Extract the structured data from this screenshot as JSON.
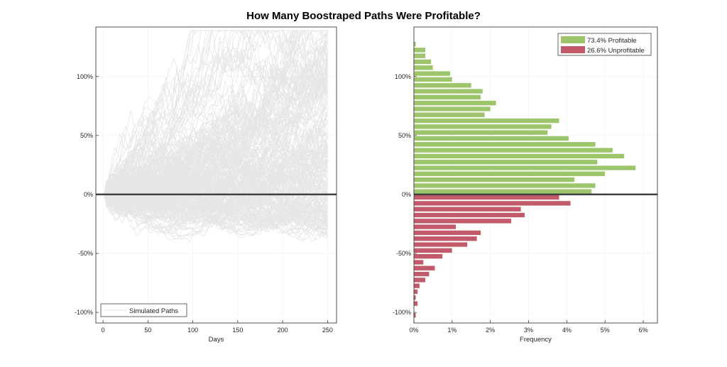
{
  "title": "How Many Boostraped Paths Were Profitable?",
  "chart_data": [
    {
      "type": "line",
      "title": "",
      "xlabel": "Days",
      "ylabel": "",
      "xlim": [
        -8,
        260
      ],
      "ylim": [
        -109,
        142
      ],
      "xticks": [
        0,
        50,
        100,
        150,
        200,
        250
      ],
      "xtick_labels": [
        "0",
        "50",
        "100",
        "150",
        "200",
        "250"
      ],
      "yticks": [
        -100,
        -50,
        0,
        50,
        100
      ],
      "ytick_labels": [
        "-100%",
        "-50%",
        "0%",
        "50%",
        "100%"
      ],
      "grid": true,
      "legend": {
        "placement": "bottom-left",
        "entries": [
          "Simulated Paths"
        ]
      },
      "series": [
        {
          "name": "Simulated Paths",
          "n_days": 252,
          "color": "#e6e6e6"
        }
      ],
      "reference_line": {
        "y": 0,
        "color": "#404040"
      }
    },
    {
      "type": "bar",
      "orientation": "horizontal",
      "title": "",
      "xlabel": "Frequency",
      "ylabel": "",
      "xlim": [
        0,
        6.37
      ],
      "ylim": [
        -109,
        142
      ],
      "xticks": [
        0,
        1,
        2,
        3,
        4,
        5,
        6
      ],
      "xtick_labels": [
        "0%",
        "1%",
        "2%",
        "3%",
        "4%",
        "5%",
        "6%"
      ],
      "yticks": [
        -100,
        -50,
        0,
        50,
        100
      ],
      "ytick_labels": [
        "-100%",
        "-50%",
        "0%",
        "50%",
        "100%"
      ],
      "grid": true,
      "bin_width": 5,
      "legend": {
        "placement": "top-right",
        "entries": [
          "73.4% Profitable",
          "26.6% Unprofitable"
        ]
      },
      "series": [
        {
          "name": "73.4% Profitable",
          "color": "#9dc56b",
          "bin_centers": [
            127.5,
            122.5,
            117.5,
            112.5,
            107.5,
            102.5,
            97.5,
            92.5,
            87.5,
            82.5,
            77.5,
            72.5,
            67.5,
            62.5,
            57.5,
            52.5,
            47.5,
            42.5,
            37.5,
            32.5,
            27.5,
            22.5,
            17.5,
            12.5,
            7.5,
            2.5
          ],
          "values": [
            0.05,
            0.3,
            0.3,
            0.45,
            0.5,
            0.95,
            1.0,
            1.5,
            1.8,
            1.75,
            2.15,
            2.0,
            1.85,
            3.8,
            3.6,
            3.5,
            4.05,
            4.75,
            5.2,
            5.5,
            4.8,
            5.8,
            5.0,
            4.2,
            4.75,
            4.65
          ]
        },
        {
          "name": "26.6% Unprofitable",
          "color": "#c25a6c",
          "bin_centers": [
            -2.5,
            -7.5,
            -12.5,
            -17.5,
            -22.5,
            -27.5,
            -32.5,
            -37.5,
            -42.5,
            -47.5,
            -52.5,
            -57.5,
            -62.5,
            -67.5,
            -72.5,
            -77.5,
            -82.5,
            -87.5,
            -92.5,
            -97.5,
            -102.5
          ],
          "values": [
            3.8,
            4.1,
            2.8,
            2.9,
            2.55,
            1.1,
            1.75,
            1.65,
            1.4,
            1.0,
            0.75,
            0.25,
            0.55,
            0.4,
            0.3,
            0.15,
            0.1,
            0.05,
            0.1,
            0,
            0.05
          ]
        }
      ],
      "reference_line": {
        "y": 0,
        "color": "#404040"
      }
    }
  ]
}
